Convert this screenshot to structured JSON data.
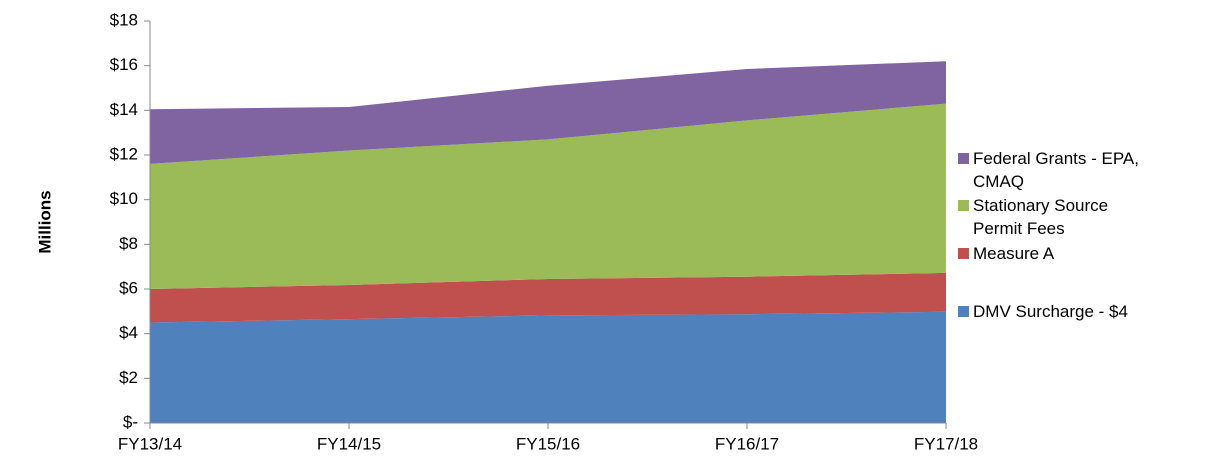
{
  "chart_data": {
    "type": "stacked_area",
    "y_axis_label": "Millions",
    "categories": [
      "FY13/14",
      "FY14/15",
      "FY15/16",
      "FY16/17",
      "FY17/18"
    ],
    "series": [
      {
        "name": "DMV Surcharge - $4",
        "color": "#4f81bd",
        "values": [
          4.5,
          4.65,
          4.82,
          4.87,
          4.98
        ]
      },
      {
        "name": "Measure A",
        "color": "#c0504d",
        "values": [
          1.5,
          1.53,
          1.63,
          1.68,
          1.74
        ]
      },
      {
        "name": "Stationary Source Permit Fees",
        "color": "#9bbb59",
        "values": [
          5.6,
          6.02,
          6.25,
          7.0,
          7.58
        ]
      },
      {
        "name": "Federal Grants - EPA, CMAQ",
        "color": "#8064a2",
        "values": [
          2.45,
          1.95,
          2.4,
          2.3,
          1.9
        ]
      }
    ],
    "ylim": [
      0,
      18
    ],
    "yticks": [
      {
        "value": 0,
        "label": "$-"
      },
      {
        "value": 2,
        "label": "$2"
      },
      {
        "value": 4,
        "label": "$4"
      },
      {
        "value": 6,
        "label": "$6"
      },
      {
        "value": 8,
        "label": "$8"
      },
      {
        "value": 10,
        "label": "$10"
      },
      {
        "value": 12,
        "label": "$12"
      },
      {
        "value": 14,
        "label": "$14"
      },
      {
        "value": 16,
        "label": "$16"
      },
      {
        "value": 18,
        "label": "$18"
      }
    ],
    "grid": false
  }
}
